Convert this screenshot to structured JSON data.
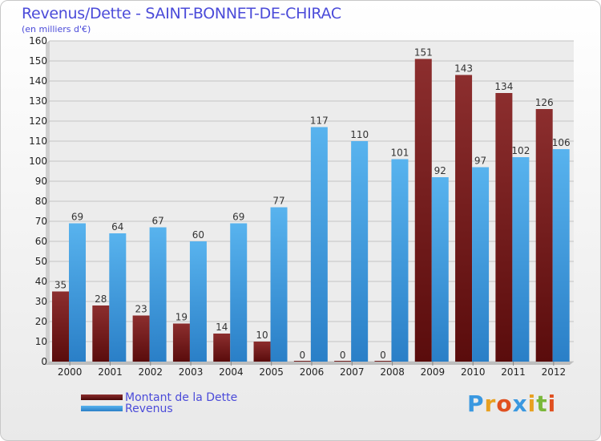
{
  "title": "Revenus/Dette - SAINT-BONNET-DE-CHIRAC",
  "subtitle": "(en milliers d'€)",
  "legend": {
    "dette_label": "Montant de la Dette",
    "revenus_label": "Revenus"
  },
  "logo": {
    "text": "Proxiti"
  },
  "colors": {
    "dette": "#7a1e1e",
    "revenus": "#3a98e0",
    "text": "#4b4bd9"
  },
  "chart_data": {
    "type": "bar",
    "title": "Revenus/Dette - SAINT-BONNET-DE-CHIRAC",
    "subtitle": "(en milliers d'€)",
    "categories": [
      "2000",
      "2001",
      "2002",
      "2003",
      "2004",
      "2005",
      "2006",
      "2007",
      "2008",
      "2009",
      "2010",
      "2011",
      "2012"
    ],
    "series": [
      {
        "name": "Montant de la Dette",
        "values": [
          35,
          28,
          23,
          19,
          14,
          10,
          0,
          0,
          0,
          151,
          143,
          134,
          126
        ]
      },
      {
        "name": "Revenus",
        "values": [
          69,
          64,
          67,
          60,
          69,
          77,
          117,
          110,
          101,
          92,
          97,
          102,
          106
        ]
      }
    ],
    "ylim": [
      0,
      160
    ],
    "yticks": [
      0,
      10,
      20,
      30,
      40,
      50,
      60,
      70,
      80,
      90,
      100,
      110,
      120,
      130,
      140,
      150,
      160
    ],
    "grid": true,
    "legend_position": "bottom-left"
  }
}
